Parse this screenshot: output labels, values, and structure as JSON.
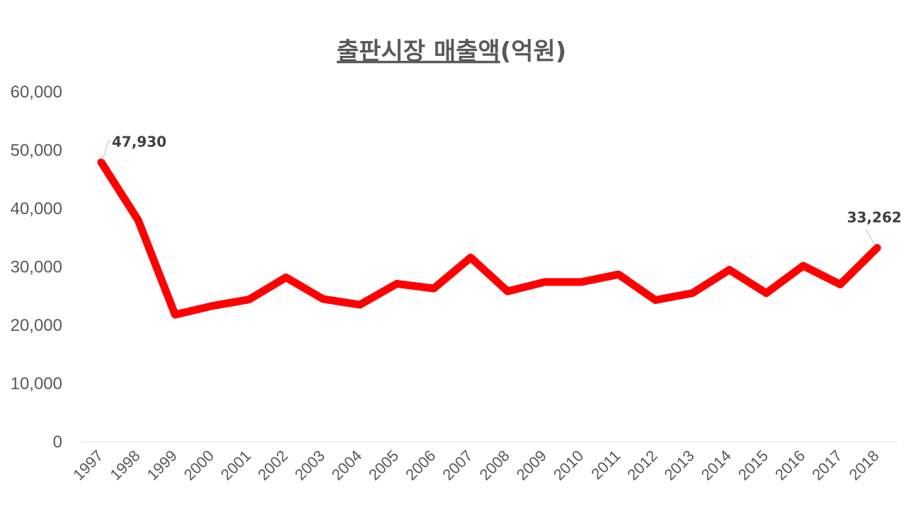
{
  "chart_data": {
    "type": "line",
    "title_underlined": "출판시장 매출액",
    "title_suffix": "(억원)",
    "x": [
      "1997",
      "1998",
      "1999",
      "2000",
      "2001",
      "2002",
      "2003",
      "2004",
      "2005",
      "2006",
      "2007",
      "2008",
      "2009",
      "2010",
      "2011",
      "2012",
      "2013",
      "2014",
      "2015",
      "2016",
      "2017",
      "2018"
    ],
    "values": [
      47930,
      38000,
      21800,
      23300,
      24400,
      28200,
      24500,
      23500,
      27100,
      26300,
      31600,
      25800,
      27400,
      27400,
      28700,
      24300,
      25500,
      29500,
      25500,
      30200,
      27000,
      33262
    ],
    "ylim": [
      0,
      60000
    ],
    "yticks": [
      "0",
      "10,000",
      "20,000",
      "30,000",
      "40,000",
      "50,000",
      "60,000"
    ],
    "data_labels": [
      {
        "index": 0,
        "text": "47,930"
      },
      {
        "index": 21,
        "text": "33,262"
      }
    ],
    "grid": false,
    "legend": "none",
    "line_color": "#ff0000",
    "text_color": "#595959"
  }
}
